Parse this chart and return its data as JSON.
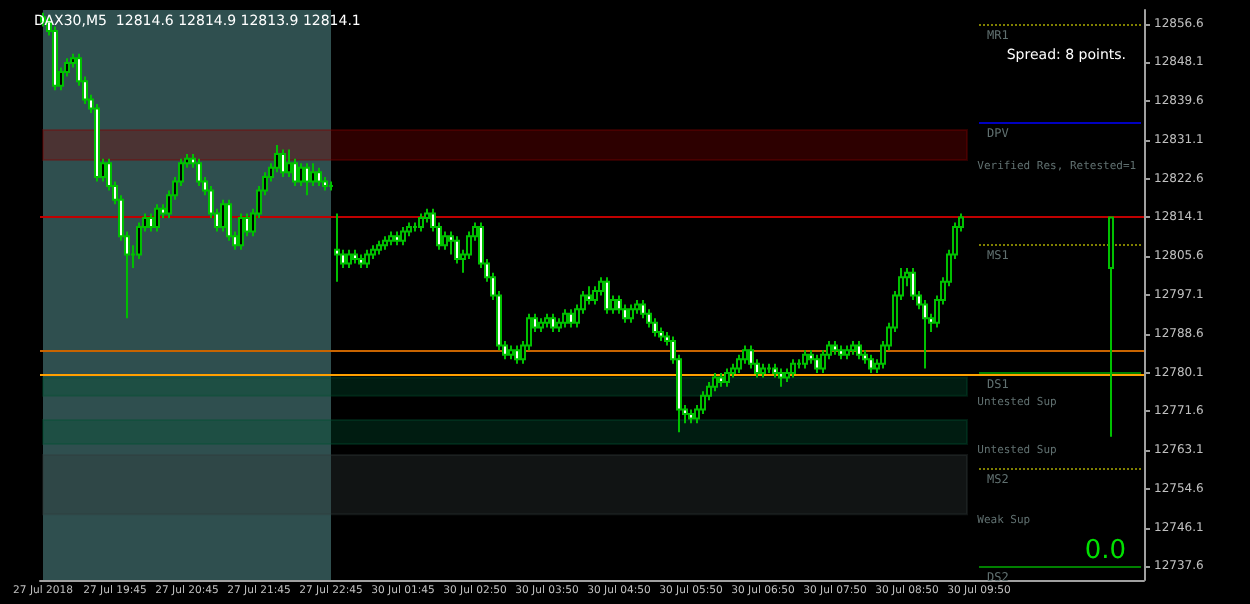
{
  "chart_data": {
    "type": "candlestick",
    "title": "DAX30,M5  12814.6 12814.9 12813.9 12814.1",
    "categories": [
      "27 Jul 2018",
      null,
      null,
      null,
      null,
      null,
      null,
      null,
      null,
      null,
      null,
      null,
      "27 Jul 19:45",
      null,
      null,
      null,
      null,
      null,
      null,
      null,
      null,
      null,
      null,
      null,
      "27 Jul 20:45",
      null,
      null,
      null,
      null,
      null,
      null,
      null,
      null,
      null,
      null,
      null,
      "27 Jul 21:45",
      null,
      null,
      null,
      null,
      null,
      null,
      null,
      null,
      null,
      null,
      null,
      "27 Jul 22:45",
      null,
      null,
      null,
      null,
      null,
      null,
      null,
      null,
      null,
      null,
      null,
      "30 Jul 01:45",
      null,
      null,
      null,
      null,
      null,
      null,
      null,
      null,
      null,
      null,
      null,
      "30 Jul 02:50",
      null,
      null,
      null,
      null,
      null,
      null,
      null,
      null,
      null,
      null,
      null,
      "30 Jul 03:50",
      null,
      null,
      null,
      null,
      null,
      null,
      null,
      null,
      null,
      null,
      null,
      "30 Jul 04:50",
      null,
      null,
      null,
      null,
      null,
      null,
      null,
      null,
      null,
      null,
      null,
      "30 Jul 05:50",
      null,
      null,
      null,
      null,
      null,
      null,
      null,
      null,
      null,
      null,
      null,
      "30 Jul 06:50",
      null,
      null,
      null,
      null,
      null,
      null,
      null,
      null,
      null,
      null,
      null,
      "30 Jul 07:50",
      null,
      null,
      null,
      null,
      null,
      null,
      null,
      null,
      null,
      null,
      null,
      "30 Jul 08:50",
      null,
      null,
      null,
      null,
      null,
      null,
      null,
      null,
      null,
      null,
      null,
      "30 Jul 09:50",
      null,
      null,
      null,
      null,
      null,
      null,
      null,
      null,
      null,
      null,
      null,
      null,
      null,
      null,
      null,
      null,
      null,
      null,
      null,
      null,
      null,
      null,
      null,
      null,
      null,
      null,
      null
    ],
    "color": "#00c000",
    "ohlc": [
      [
        12858,
        12859,
        12856,
        12857
      ],
      [
        12857,
        12858,
        12854,
        12855
      ],
      [
        12855,
        12856,
        12842,
        12843
      ],
      [
        12843,
        12847,
        12842,
        12846
      ],
      [
        12846,
        12849,
        12845,
        12848
      ],
      [
        12848,
        12850,
        12847,
        12849
      ],
      [
        12849,
        12850,
        12843,
        12844
      ],
      [
        12844,
        12845,
        12839,
        12840
      ],
      [
        12840,
        12841,
        12837,
        12838
      ],
      [
        12838,
        12839,
        12822,
        12823
      ],
      [
        12823,
        12827,
        12822,
        12826
      ],
      [
        12826,
        12827,
        12820,
        12821
      ],
      [
        12821,
        12822,
        12817,
        12818
      ],
      [
        12818,
        12819,
        12809,
        12810
      ],
      [
        12810,
        12811,
        12792,
        12806
      ],
      [
        12806,
        12808,
        12803,
        12806
      ],
      [
        12806,
        12813,
        12805,
        12812
      ],
      [
        12812,
        12815,
        12811,
        12814
      ],
      [
        12814,
        12815,
        12811,
        12812
      ],
      [
        12812,
        12817,
        12811,
        12816
      ],
      [
        12816,
        12817,
        12814,
        12815
      ],
      [
        12815,
        12820,
        12814,
        12819
      ],
      [
        12819,
        12823,
        12818,
        12822
      ],
      [
        12822,
        12827,
        12821,
        12826
      ],
      [
        12826,
        12828,
        12825,
        12827
      ],
      [
        12827,
        12828,
        12825,
        12826
      ],
      [
        12826,
        12827,
        12821,
        12822
      ],
      [
        12822,
        12823,
        12819,
        12820
      ],
      [
        12820,
        12821,
        12814,
        12815
      ],
      [
        12815,
        12816,
        12811,
        12812
      ],
      [
        12812,
        12818,
        12811,
        12817
      ],
      [
        12817,
        12818,
        12809,
        12810
      ],
      [
        12810,
        12811,
        12807,
        12808
      ],
      [
        12808,
        12815,
        12807,
        12814
      ],
      [
        12814,
        12815,
        12810,
        12811
      ],
      [
        12811,
        12816,
        12810,
        12815
      ],
      [
        12815,
        12821,
        12814,
        12820
      ],
      [
        12820,
        12824,
        12819,
        12823
      ],
      [
        12823,
        12826,
        12822,
        12825
      ],
      [
        12825,
        12830,
        12824,
        12828
      ],
      [
        12828,
        12829,
        12823,
        12824
      ],
      [
        12824,
        12829,
        12823,
        12826
      ],
      [
        12826,
        12827,
        12821,
        12822
      ],
      [
        12822,
        12826,
        12821,
        12825
      ],
      [
        12825,
        12826,
        12819,
        12822
      ],
      [
        12822,
        12826,
        12821,
        12824
      ],
      [
        12824,
        12825,
        12821,
        12822
      ],
      [
        12822,
        12823,
        12820,
        12821
      ],
      [
        12821,
        12822,
        12820,
        12821
      ],
      [
        12807,
        12815,
        12800,
        12806
      ],
      [
        12806,
        12807,
        12803,
        12804
      ],
      [
        12804,
        12807,
        12803,
        12806
      ],
      [
        12806,
        12807,
        12804,
        12805
      ],
      [
        12805,
        12806,
        12803,
        12804
      ],
      [
        12804,
        12807,
        12803,
        12806
      ],
      [
        12806,
        12808,
        12805,
        12807
      ],
      [
        12807,
        12809,
        12806,
        12808
      ],
      [
        12808,
        12810,
        12807,
        12809
      ],
      [
        12809,
        12811,
        12808,
        12810
      ],
      [
        12810,
        12811,
        12808,
        12809
      ],
      [
        12809,
        12812,
        12808,
        12811
      ],
      [
        12811,
        12813,
        12810,
        12812
      ],
      [
        12812,
        12813,
        12811,
        12812
      ],
      [
        12812,
        12815,
        12811,
        12814
      ],
      [
        12814,
        12816,
        12813,
        12815
      ],
      [
        12815,
        12816,
        12811,
        12812
      ],
      [
        12812,
        12813,
        12807,
        12808
      ],
      [
        12808,
        12811,
        12807,
        12810
      ],
      [
        12810,
        12811,
        12806,
        12809
      ],
      [
        12809,
        12810,
        12804,
        12805
      ],
      [
        12805,
        12807,
        12802,
        12806
      ],
      [
        12806,
        12811,
        12805,
        12810
      ],
      [
        12810,
        12813,
        12809,
        12812
      ],
      [
        12812,
        12813,
        12803,
        12804
      ],
      [
        12804,
        12805,
        12800,
        12801
      ],
      [
        12801,
        12802,
        12796,
        12797
      ],
      [
        12797,
        12798,
        12785,
        12786
      ],
      [
        12786,
        12787,
        12783,
        12784
      ],
      [
        12784,
        12786,
        12783,
        12785
      ],
      [
        12785,
        12786,
        12782,
        12783
      ],
      [
        12783,
        12787,
        12782,
        12786
      ],
      [
        12786,
        12793,
        12785,
        12792
      ],
      [
        12792,
        12793,
        12789,
        12790
      ],
      [
        12790,
        12792,
        12789,
        12791
      ],
      [
        12791,
        12793,
        12790,
        12792
      ],
      [
        12792,
        12793,
        12789,
        12790
      ],
      [
        12790,
        12792,
        12789,
        12791
      ],
      [
        12791,
        12794,
        12790,
        12793
      ],
      [
        12793,
        12794,
        12790,
        12791
      ],
      [
        12791,
        12795,
        12790,
        12794
      ],
      [
        12794,
        12798,
        12793,
        12797
      ],
      [
        12797,
        12799,
        12795,
        12796
      ],
      [
        12796,
        12799,
        12795,
        12798
      ],
      [
        12798,
        12801,
        12797,
        12800
      ],
      [
        12800,
        12801,
        12793,
        12794
      ],
      [
        12794,
        12797,
        12793,
        12796
      ],
      [
        12796,
        12797,
        12793,
        12794
      ],
      [
        12794,
        12795,
        12791,
        12792
      ],
      [
        12792,
        12795,
        12791,
        12794
      ],
      [
        12794,
        12796,
        12793,
        12795
      ],
      [
        12795,
        12796,
        12792,
        12793
      ],
      [
        12793,
        12794,
        12790,
        12791
      ],
      [
        12791,
        12792,
        12788,
        12789
      ],
      [
        12789,
        12790,
        12787,
        12788
      ],
      [
        12788,
        12789,
        12786,
        12787
      ],
      [
        12787,
        12788,
        12782,
        12783
      ],
      [
        12783,
        12784,
        12767,
        12772
      ],
      [
        12772,
        12773,
        12769,
        12771
      ],
      [
        12771,
        12772,
        12769,
        12770
      ],
      [
        12770,
        12773,
        12769,
        12772
      ],
      [
        12772,
        12776,
        12771,
        12775
      ],
      [
        12775,
        12778,
        12774,
        12777
      ],
      [
        12777,
        12780,
        12776,
        12779
      ],
      [
        12779,
        12780,
        12777,
        12778
      ],
      [
        12778,
        12781,
        12777,
        12780
      ],
      [
        12780,
        12782,
        12779,
        12781
      ],
      [
        12781,
        12784,
        12780,
        12783
      ],
      [
        12783,
        12786,
        12782,
        12785
      ],
      [
        12785,
        12786,
        12781,
        12782
      ],
      [
        12782,
        12783,
        12779,
        12780
      ],
      [
        12780,
        12782,
        12779,
        12781
      ],
      [
        12781,
        12782,
        12780,
        12781
      ],
      [
        12781,
        12782,
        12779,
        12780
      ],
      [
        12780,
        12781,
        12777,
        12779
      ],
      [
        12779,
        12781,
        12778,
        12780
      ],
      [
        12780,
        12783,
        12779,
        12782
      ],
      [
        12782,
        12783,
        12781,
        12782
      ],
      [
        12782,
        12785,
        12781,
        12784
      ],
      [
        12784,
        12785,
        12782,
        12783
      ],
      [
        12783,
        12784,
        12780,
        12781
      ],
      [
        12781,
        12785,
        12780,
        12784
      ],
      [
        12784,
        12787,
        12783,
        12786
      ],
      [
        12786,
        12787,
        12784,
        12785
      ],
      [
        12785,
        12786,
        12783,
        12784
      ],
      [
        12784,
        12786,
        12783,
        12785
      ],
      [
        12785,
        12787,
        12784,
        12786
      ],
      [
        12786,
        12787,
        12783,
        12784
      ],
      [
        12784,
        12785,
        12782,
        12783
      ],
      [
        12783,
        12784,
        12780,
        12781
      ],
      [
        12781,
        12783,
        12780,
        12782
      ],
      [
        12782,
        12787,
        12781,
        12786
      ],
      [
        12786,
        12791,
        12785,
        12790
      ],
      [
        12790,
        12798,
        12789,
        12797
      ],
      [
        12797,
        12803,
        12796,
        12801
      ],
      [
        12801,
        12803,
        12799,
        12802
      ],
      [
        12802,
        12803,
        12796,
        12797
      ],
      [
        12797,
        12798,
        12794,
        12795
      ],
      [
        12795,
        12796,
        12781,
        12792
      ],
      [
        12792,
        12793,
        12789,
        12791
      ],
      [
        12791,
        12797,
        12790,
        12796
      ],
      [
        12796,
        12801,
        12795,
        12800
      ],
      [
        12800,
        12807,
        12799,
        12806
      ],
      [
        12806,
        12813,
        12805,
        12812
      ],
      [
        12812,
        12815,
        12811,
        12814.1
      ],
      null,
      null,
      null,
      null,
      null,
      null,
      null,
      null,
      null,
      null,
      null,
      null,
      null,
      null,
      null,
      null,
      null,
      null,
      null,
      null,
      null,
      null,
      null,
      null,
      [
        12803,
        12814.1,
        12766,
        12814.1
      ],
      null,
      null,
      null,
      null,
      null
    ],
    "ylim": [
      12734.6,
      12859.6
    ],
    "yticks": [
      12737.6,
      12746.1,
      12754.6,
      12763.1,
      12771.6,
      12780.1,
      12788.6,
      12797.1,
      12805.6,
      12814.1,
      12822.6,
      12831.1,
      12839.6,
      12848.1,
      12856.6
    ],
    "ref_lines": [
      {
        "axis": "y",
        "value": 12814.1,
        "color": "#c00000"
      },
      {
        "axis": "y",
        "value": 12785,
        "color": "#c86400"
      },
      {
        "axis": "y",
        "value": 12779.8,
        "color": "#ffa000"
      },
      {
        "axis": "y",
        "value": 12856.6,
        "label": "MR1",
        "color": "#808000",
        "line_style": "dotted"
      },
      {
        "axis": "y",
        "value": 12835.1,
        "label": "DPV",
        "color": "#0000c0"
      },
      {
        "axis": "y",
        "value": 12808.3,
        "label": "MS1",
        "color": "#808000",
        "line_style": "dotted"
      },
      {
        "axis": "y",
        "value": 12780.1,
        "label": "DS1",
        "color": "#008000"
      },
      {
        "axis": "y",
        "value": 12759.1,
        "label": "MS2",
        "color": "#808000",
        "line_style": "dotted"
      },
      {
        "axis": "y",
        "value": 12737.6,
        "label": "DS2",
        "color": "#008000"
      }
    ],
    "bands": [
      {
        "axis": "x",
        "from": "27 Jul 2018",
        "to": "27 Jul 22:45",
        "color": "#2f4f4f"
      },
      {
        "axis": "y",
        "from": 12826.7,
        "to": 12833.3,
        "label": "Verified Res, Retested=1",
        "color": "#800000"
      },
      {
        "axis": "y",
        "from": 12775,
        "to": 12779,
        "label": "Untested Sup",
        "color": "#005030"
      },
      {
        "axis": "y",
        "from": 12764.4,
        "to": 12769.7,
        "label": "Untested Sup",
        "color": "#005030"
      },
      {
        "axis": "y",
        "from": 12749,
        "to": 12762,
        "label": "Weak Sup",
        "color": "#303838"
      }
    ],
    "annotations": [
      "Spread: 8 points.",
      "0.0"
    ]
  }
}
